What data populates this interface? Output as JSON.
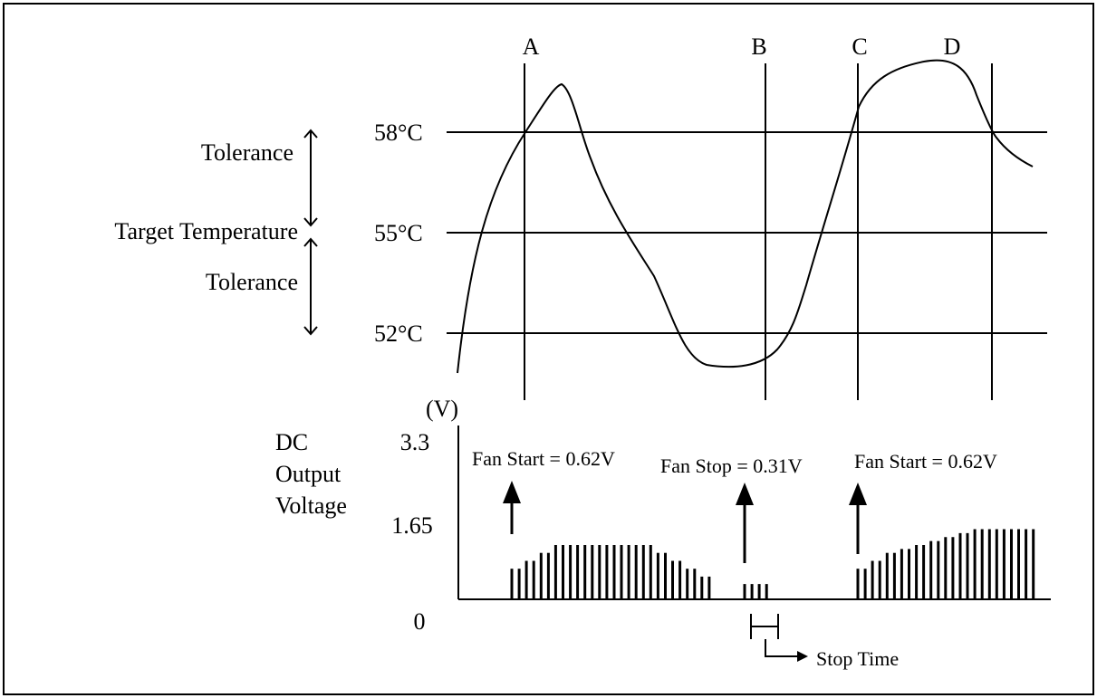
{
  "event_labels": [
    "A",
    "B",
    "C",
    "D"
  ],
  "temperature": {
    "levels": [
      {
        "label": "58°C",
        "value": 58
      },
      {
        "label": "55°C",
        "value": 55
      },
      {
        "label": "52°C",
        "value": 52
      }
    ],
    "target_label": "Target Temperature",
    "upper_tolerance_label": "Tolerance",
    "lower_tolerance_label": "Tolerance"
  },
  "voltage": {
    "unit_label": "(V)",
    "axis_title_line1": "DC",
    "axis_title_line2": "Output",
    "axis_title_line3": "Voltage",
    "ticks": [
      {
        "label": "3.3",
        "value": 3.3
      },
      {
        "label": "1.65",
        "value": 1.65
      },
      {
        "label": "0",
        "value": 0
      }
    ],
    "fan_start_label_1": "Fan Start = 0.62V",
    "fan_stop_label": "Fan Stop = 0.31V",
    "fan_start_label_2": "Fan Start = 0.62V",
    "stop_time_label": "Stop Time",
    "pulse_groups": [
      {
        "name": "rise-to-plateau",
        "levels": [
          0.62,
          0.62,
          0.78,
          0.78,
          0.94,
          0.94,
          1.1,
          1.1,
          1.1,
          1.1,
          1.1,
          1.1,
          1.1,
          1.1,
          1.1,
          1.1,
          1.1,
          1.1,
          1.1,
          1.1,
          0.94,
          0.94,
          0.78,
          0.78,
          0.62,
          0.62,
          0.46,
          0.46
        ]
      },
      {
        "name": "stop-tail",
        "levels": [
          0.31,
          0.31,
          0.31,
          0.31
        ]
      },
      {
        "name": "second-rise",
        "levels": [
          0.62,
          0.62,
          0.78,
          0.78,
          0.94,
          0.94,
          1.02,
          1.02,
          1.1,
          1.1,
          1.18,
          1.18,
          1.26,
          1.26,
          1.34,
          1.34,
          1.42,
          1.42,
          1.42,
          1.42,
          1.42,
          1.42,
          1.42,
          1.42,
          1.42
        ]
      }
    ]
  },
  "colors": {
    "line": "#000000",
    "background": "#ffffff"
  }
}
